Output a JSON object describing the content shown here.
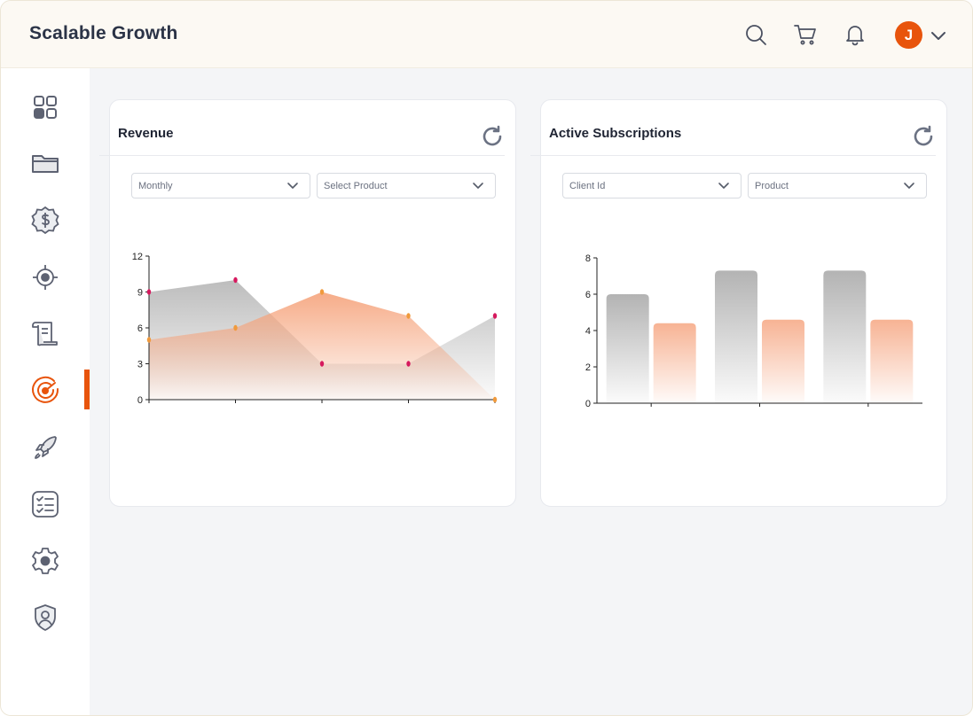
{
  "app": {
    "title": "Scalable Growth"
  },
  "header": {
    "icons": [
      "search-icon",
      "cart-icon",
      "bell-icon"
    ],
    "user": {
      "initial": "J"
    }
  },
  "sidebar": {
    "items": [
      {
        "icon": "dashboard-grid-icon",
        "active": false
      },
      {
        "icon": "folder-icon",
        "active": false
      },
      {
        "icon": "dollar-badge-icon",
        "active": false
      },
      {
        "icon": "target-icon",
        "active": false
      },
      {
        "icon": "scroll-icon",
        "active": false
      },
      {
        "icon": "radar-icon",
        "active": true
      },
      {
        "icon": "rocket-icon",
        "active": false
      },
      {
        "icon": "checklist-icon",
        "active": false
      },
      {
        "icon": "gear-icon",
        "active": false
      },
      {
        "icon": "user-shield-icon",
        "active": false
      }
    ],
    "accent_color": "#e8540c"
  },
  "revenue_card": {
    "title": "Revenue",
    "filters": {
      "period": "Monthly",
      "product_placeholder": "Select Product"
    }
  },
  "subscriptions_card": {
    "title": "Active Subscriptions",
    "filters": {
      "client_placeholder": "Client Id",
      "product_placeholder": "Product"
    }
  },
  "chart_data": [
    {
      "type": "area",
      "x": [
        0,
        1,
        2,
        3,
        4
      ],
      "xlim": [
        0,
        4
      ],
      "ylim": [
        0,
        12
      ],
      "yticks": [
        0,
        3,
        6,
        9,
        12
      ],
      "series": [
        {
          "values": [
            9,
            10,
            3,
            3,
            7
          ],
          "color": "#b5b5b5",
          "marker_color": "#d6195e"
        },
        {
          "values": [
            5,
            6,
            9,
            7,
            0
          ],
          "color": "#f5a27a",
          "marker_color": "#f09a3c"
        }
      ],
      "grid": false
    },
    {
      "type": "bar",
      "categories": [
        "0",
        "1",
        "2"
      ],
      "ylim": [
        0,
        8
      ],
      "yticks": [
        0,
        2,
        4,
        6,
        8
      ],
      "series": [
        {
          "values": [
            6,
            7.3,
            7.3
          ],
          "color": "#b3b3b3"
        },
        {
          "values": [
            4.4,
            4.6,
            4.6
          ],
          "color": "#f7b394"
        }
      ],
      "grid": false
    }
  ]
}
